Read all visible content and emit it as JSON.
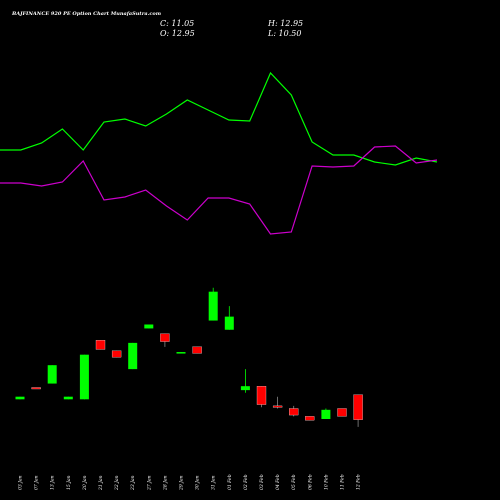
{
  "header": {
    "title": "BAJFINANCE 920  PE Option  Chart MunafaSutra.com",
    "open_label": "O: 12.95",
    "high_label": "H: 12.95",
    "low_label": "L: 10.50",
    "close_label": "C: 11.05"
  },
  "colors": {
    "background": "#000000",
    "up": "#00ff00",
    "down": "#ff0000",
    "line_green": "#00ff00",
    "line_magenta": "#cc00cc",
    "text": "#ffffff"
  },
  "chart_data": {
    "type": "candlestick",
    "y_range": [
      9.5,
      25.5
    ],
    "categories": [
      "03 Jan",
      "07 Jan",
      "13 Jan",
      "15 Jan",
      "20 Jan",
      "21 Jan",
      "22 Jan",
      "23 Jan",
      "27 Jan",
      "28 Jan",
      "29 Jan",
      "30 Jan",
      "31 Jan",
      "01 Feb",
      "02 Feb",
      "03 Feb",
      "04 Feb",
      "05 Feb",
      "06 Feb",
      "10 Feb",
      "11 Feb",
      "12 Feb"
    ],
    "candles": [
      {
        "date": "03 Jan",
        "open": 12.6,
        "high": 12.8,
        "low": 12.6,
        "close": 12.8
      },
      {
        "date": "07 Jan",
        "open": 13.5,
        "high": 13.5,
        "low": 13.4,
        "close": 13.4
      },
      {
        "date": "13 Jan",
        "open": 13.8,
        "high": 15.2,
        "low": 13.8,
        "close": 15.2
      },
      {
        "date": "15 Jan",
        "open": 12.6,
        "high": 12.8,
        "low": 12.6,
        "close": 12.8
      },
      {
        "date": "20 Jan",
        "open": 12.6,
        "high": 16.0,
        "low": 12.6,
        "close": 16.0
      },
      {
        "date": "21 Jan",
        "open": 17.1,
        "high": 17.1,
        "low": 16.4,
        "close": 16.4
      },
      {
        "date": "22 Jan",
        "open": 16.3,
        "high": 16.3,
        "low": 15.8,
        "close": 15.8
      },
      {
        "date": "23 Jan",
        "open": 14.9,
        "high": 16.9,
        "low": 14.9,
        "close": 16.9
      },
      {
        "date": "27 Jan",
        "open": 18.0,
        "high": 18.3,
        "low": 18.0,
        "close": 18.3
      },
      {
        "date": "28 Jan",
        "open": 17.6,
        "high": 17.6,
        "low": 16.6,
        "close": 17.0
      },
      {
        "date": "29 Jan",
        "open": 16.2,
        "high": 16.2,
        "low": 16.1,
        "close": 16.2
      },
      {
        "date": "30 Jan",
        "open": 16.6,
        "high": 16.6,
        "low": 16.1,
        "close": 16.1
      },
      {
        "date": "31 Jan",
        "open": 18.6,
        "high": 21.1,
        "low": 18.6,
        "close": 20.8
      },
      {
        "date": "01 Feb",
        "open": 17.9,
        "high": 19.7,
        "low": 17.9,
        "close": 18.9
      },
      {
        "date": "02 Feb",
        "open": 13.3,
        "high": 14.9,
        "low": 13.1,
        "close": 13.6
      },
      {
        "date": "03 Feb",
        "open": 13.6,
        "high": 13.6,
        "low": 12.0,
        "close": 12.2
      },
      {
        "date": "04 Feb",
        "open": 12.1,
        "high": 12.8,
        "low": 11.9,
        "close": 12.0
      },
      {
        "date": "05 Feb",
        "open": 11.9,
        "high": 12.1,
        "low": 11.3,
        "close": 11.4
      },
      {
        "date": "06 Feb",
        "open": 11.3,
        "high": 11.3,
        "low": 11.0,
        "close": 11.0
      },
      {
        "date": "10 Feb",
        "open": 11.1,
        "high": 11.9,
        "low": 11.1,
        "close": 11.8
      },
      {
        "date": "11 Feb",
        "open": 11.9,
        "high": 11.9,
        "low": 11.3,
        "close": 11.3
      },
      {
        "date": "12 Feb",
        "open": 12.95,
        "high": 12.95,
        "low": 10.5,
        "close": 11.05
      }
    ],
    "green_line": [
      150,
      150,
      143,
      129,
      150,
      122,
      119,
      126,
      114,
      100,
      110,
      120,
      121,
      73,
      95,
      142,
      155,
      155,
      162,
      165,
      158,
      162
    ],
    "magenta_line": [
      183,
      183,
      186,
      182,
      161,
      200,
      197,
      190,
      206,
      220,
      198,
      198,
      204,
      234,
      232,
      166,
      167,
      166,
      147,
      146,
      163,
      160
    ]
  }
}
